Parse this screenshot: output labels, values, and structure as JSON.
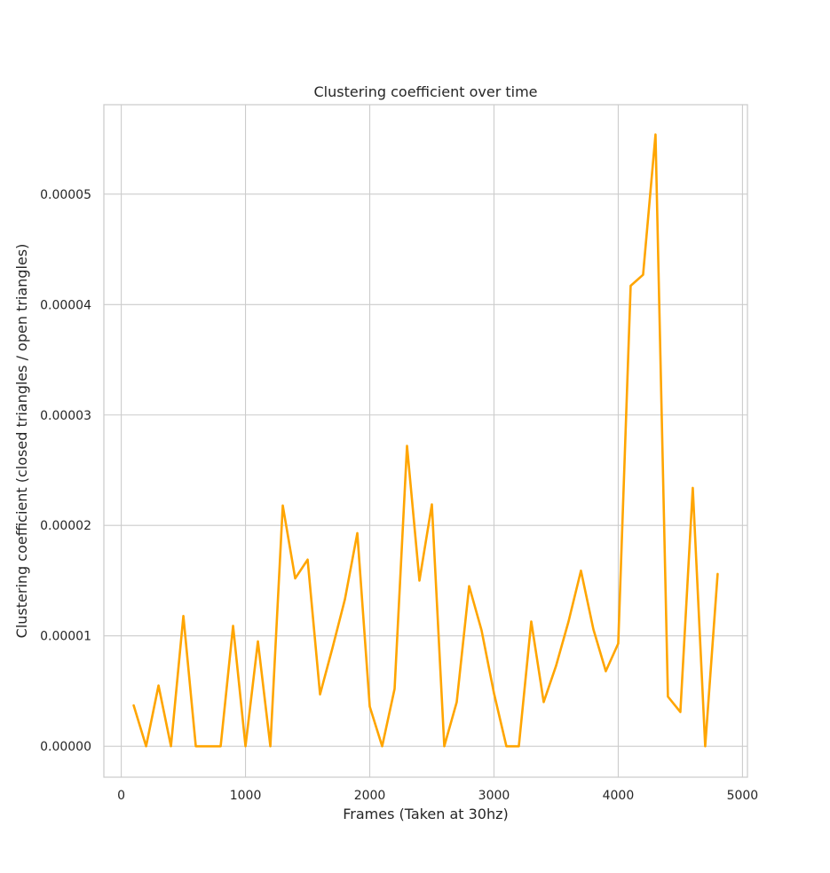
{
  "chart_data": {
    "type": "line",
    "title": "Clustering coefficient over time",
    "xlabel": "Frames (Taken at 30hz)",
    "ylabel": "Clustering coefficient (closed triangles / open triangles)",
    "xlim": [
      -140,
      5040
    ],
    "ylim": [
      -2.8e-06,
      5.81e-05
    ],
    "xticks": [
      0,
      1000,
      2000,
      3000,
      4000,
      5000
    ],
    "xtick_labels": [
      "0",
      "1000",
      "2000",
      "3000",
      "4000",
      "5000"
    ],
    "yticks": [
      0,
      1e-05,
      2e-05,
      3e-05,
      4e-05,
      5e-05
    ],
    "ytick_labels": [
      "0.00000",
      "0.00001",
      "0.00002",
      "0.00003",
      "0.00004",
      "0.00005"
    ],
    "grid": true,
    "line_color": "#ffa500",
    "series": [
      {
        "x": [
          100,
          200,
          300,
          400,
          500,
          600,
          700,
          800,
          900,
          1000,
          1100,
          1200,
          1300,
          1400,
          1500,
          1600,
          1700,
          1800,
          1900,
          2000,
          2100,
          2200,
          2300,
          2400,
          2500,
          2600,
          2700,
          2800,
          2900,
          3000,
          3100,
          3200,
          3300,
          3400,
          3500,
          3600,
          3700,
          3800,
          3900,
          4000,
          4100,
          4200,
          4300,
          4400,
          4500,
          4600,
          4700,
          4800
        ],
        "values": [
          3.7e-06,
          0.0,
          5.5e-06,
          0.0,
          1.18e-05,
          0.0,
          0.0,
          0.0,
          1.09e-05,
          0.0,
          9.5e-06,
          0.0,
          2.18e-05,
          1.52e-05,
          1.69e-05,
          4.7e-06,
          8.9e-06,
          1.33e-05,
          1.93e-05,
          3.6e-06,
          0.0,
          5.2e-06,
          2.72e-05,
          1.5e-05,
          2.19e-05,
          0.0,
          4e-06,
          1.45e-05,
          1.05e-05,
          4.8e-06,
          0.0,
          0.0,
          1.13e-05,
          4e-06,
          7.3e-06,
          1.13e-05,
          1.59e-05,
          1.06e-05,
          6.8e-06,
          9.3e-06,
          4.17e-05,
          4.27e-05,
          5.54e-05,
          4.5e-06,
          3.1e-06,
          2.34e-05,
          0.0,
          1.56e-05
        ]
      }
    ]
  }
}
